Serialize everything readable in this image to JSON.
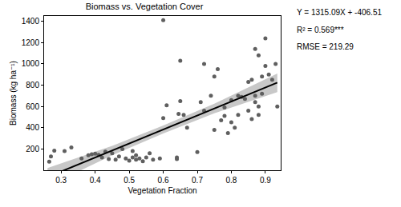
{
  "chart_data": {
    "type": "scatter",
    "title": "Biomass vs. Vegetation Cover",
    "x_label": "Vegetation Fraction",
    "y_label": "Biomass (kg ha⁻¹)",
    "xlim": [
      0.25,
      0.945
    ],
    "ylim": [
      0,
      1450
    ],
    "xticks": [
      0.3,
      0.4,
      0.5,
      0.6,
      0.7,
      0.8,
      0.9
    ],
    "yticks": [
      200,
      400,
      600,
      800,
      1000,
      1200,
      1400
    ],
    "grid": false,
    "points": {
      "color": "#5f5f5f",
      "marker": "circle",
      "x": [
        0.265,
        0.27,
        0.28,
        0.31,
        0.33,
        0.36,
        0.38,
        0.39,
        0.4,
        0.41,
        0.42,
        0.43,
        0.44,
        0.45,
        0.46,
        0.47,
        0.48,
        0.49,
        0.5,
        0.51,
        0.51,
        0.52,
        0.52,
        0.53,
        0.54,
        0.55,
        0.56,
        0.57,
        0.59,
        0.6,
        0.6,
        0.61,
        0.64,
        0.64,
        0.645,
        0.65,
        0.65,
        0.66,
        0.67,
        0.7,
        0.71,
        0.72,
        0.72,
        0.74,
        0.75,
        0.75,
        0.76,
        0.77,
        0.78,
        0.78,
        0.79,
        0.8,
        0.8,
        0.81,
        0.82,
        0.82,
        0.83,
        0.84,
        0.85,
        0.85,
        0.86,
        0.86,
        0.87,
        0.87,
        0.87,
        0.88,
        0.88,
        0.88,
        0.89,
        0.89,
        0.9,
        0.9,
        0.91,
        0.92,
        0.93,
        0.935
      ],
      "values": [
        80,
        130,
        185,
        180,
        215,
        110,
        140,
        150,
        155,
        145,
        120,
        175,
        105,
        160,
        100,
        130,
        200,
        110,
        90,
        120,
        180,
        140,
        100,
        110,
        85,
        120,
        160,
        100,
        110,
        1410,
        490,
        610,
        105,
        120,
        530,
        650,
        1030,
        520,
        400,
        170,
        640,
        1000,
        560,
        700,
        880,
        380,
        950,
        470,
        510,
        590,
        350,
        450,
        660,
        400,
        520,
        700,
        690,
        670,
        830,
        560,
        850,
        480,
        1140,
        700,
        640,
        1080,
        600,
        520,
        720,
        880,
        1240,
        980,
        900,
        850,
        1000,
        600
      ]
    },
    "fit": {
      "color": "#000000",
      "band_color": "#c8c8c8",
      "line_style": "solid",
      "x": [
        0.26,
        0.45,
        0.6,
        0.75,
        0.935
      ],
      "values": [
        -64.6,
        185.3,
        382.5,
        579.8,
        823.1
      ],
      "lower": [
        -150,
        140,
        345,
        535,
        735
      ],
      "upper": [
        20,
        230,
        420,
        625,
        910
      ]
    },
    "annotations": [
      "Y = 1315.09X + -406.51",
      "R² = 0.569***",
      "RMSE = 219.29"
    ]
  }
}
